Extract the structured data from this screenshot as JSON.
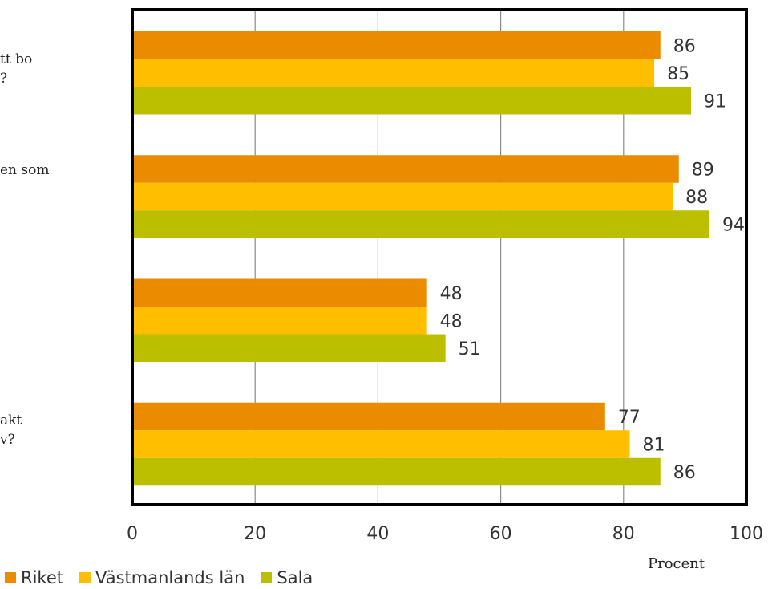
{
  "chart_data": {
    "type": "bar",
    "orientation": "horizontal",
    "categories": [
      "tt bo\n?",
      "en som",
      "",
      "akt\nv?"
    ],
    "series": [
      {
        "name": "Riket",
        "color": "#ea8b00",
        "values": [
          86,
          89,
          48,
          77
        ]
      },
      {
        "name": "Västmanlands län",
        "color": "#ffbf00",
        "values": [
          85,
          88,
          48,
          81
        ]
      },
      {
        "name": "Sala",
        "color": "#bcbf00",
        "values": [
          91,
          94,
          51,
          86
        ]
      }
    ],
    "x_ticks": [
      "0",
      "20",
      "40",
      "60",
      "80",
      "100"
    ],
    "xlim": [
      0,
      100
    ],
    "xlabel": "Procent",
    "grid": "vertical",
    "legend_position": "bottom-left"
  }
}
